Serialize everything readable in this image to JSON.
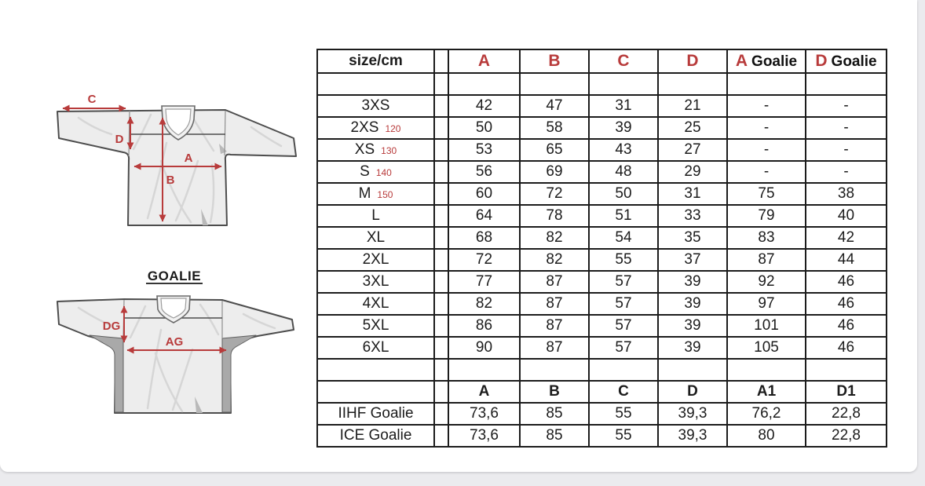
{
  "page": {
    "background_color": "#ebebee",
    "card_color": "#ffffff",
    "accent_color": "#b83b3b",
    "table_line_color": "#1c1c1c"
  },
  "diagram": {
    "regular_jersey": {
      "label_c": "C",
      "label_d": "D",
      "label_a": "A",
      "label_b": "B"
    },
    "goalie_jersey": {
      "title": "GOALIE",
      "label_dg": "DG",
      "label_ag": "AG"
    }
  },
  "table": {
    "corner_header": "size/cm",
    "headers": [
      {
        "red": "A",
        "black": ""
      },
      {
        "red": "B",
        "black": ""
      },
      {
        "red": "C",
        "black": ""
      },
      {
        "red": "D",
        "black": ""
      },
      {
        "red": "A",
        "black": "Goalie"
      },
      {
        "red": "D",
        "black": "Goalie"
      }
    ],
    "size_rows": [
      {
        "label": "3XS",
        "note": "",
        "values": [
          "42",
          "47",
          "31",
          "21",
          "-",
          "-"
        ]
      },
      {
        "label": "2XS",
        "note": "120",
        "values": [
          "50",
          "58",
          "39",
          "25",
          "-",
          "-"
        ]
      },
      {
        "label": "XS",
        "note": "130",
        "values": [
          "53",
          "65",
          "43",
          "27",
          "-",
          "-"
        ]
      },
      {
        "label": "S",
        "note": "140",
        "values": [
          "56",
          "69",
          "48",
          "29",
          "-",
          "-"
        ]
      },
      {
        "label": "M",
        "note": "150",
        "values": [
          "60",
          "72",
          "50",
          "31",
          "75",
          "38"
        ]
      },
      {
        "label": "L",
        "note": "",
        "values": [
          "64",
          "78",
          "51",
          "33",
          "79",
          "40"
        ]
      },
      {
        "label": "XL",
        "note": "",
        "values": [
          "68",
          "82",
          "54",
          "35",
          "83",
          "42"
        ]
      },
      {
        "label": "2XL",
        "note": "",
        "values": [
          "72",
          "82",
          "55",
          "37",
          "87",
          "44"
        ]
      },
      {
        "label": "3XL",
        "note": "",
        "values": [
          "77",
          "87",
          "57",
          "39",
          "92",
          "46"
        ]
      },
      {
        "label": "4XL",
        "note": "",
        "values": [
          "82",
          "87",
          "57",
          "39",
          "97",
          "46"
        ]
      },
      {
        "label": "5XL",
        "note": "",
        "values": [
          "86",
          "87",
          "57",
          "39",
          "101",
          "46"
        ]
      },
      {
        "label": "6XL",
        "note": "",
        "values": [
          "90",
          "87",
          "57",
          "39",
          "105",
          "46"
        ]
      }
    ],
    "goalie_headers": [
      "A",
      "B",
      "C",
      "D",
      "A1",
      "D1"
    ],
    "goalie_rows": [
      {
        "label": "IIHF Goalie",
        "values": [
          "73,6",
          "85",
          "55",
          "39,3",
          "76,2",
          "22,8"
        ]
      },
      {
        "label": "ICE Goalie",
        "values": [
          "73,6",
          "85",
          "55",
          "39,3",
          "80",
          "22,8"
        ]
      }
    ]
  }
}
